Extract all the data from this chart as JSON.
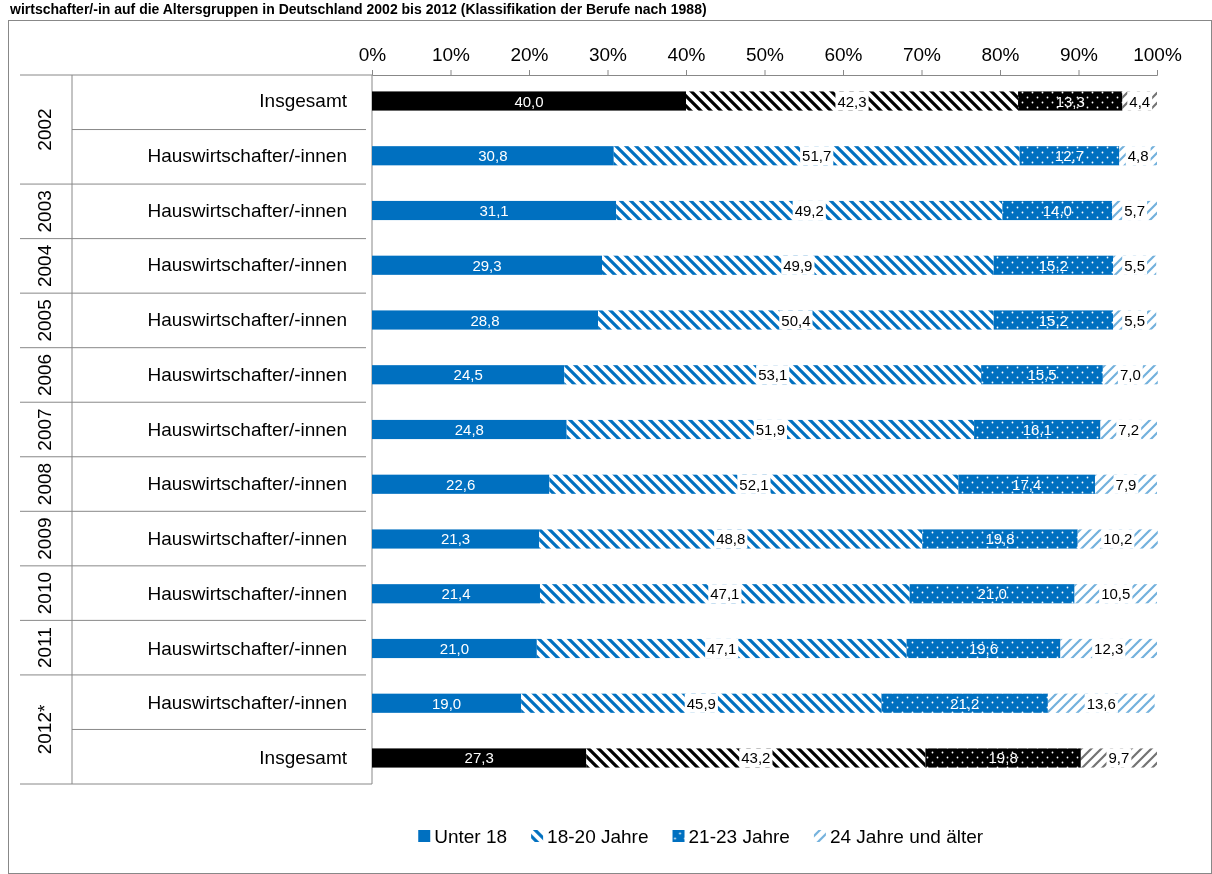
{
  "chart_data": {
    "type": "bar",
    "orientation": "horizontal",
    "stacked": true,
    "title": "wirtschafter/-in auf die Altersgruppen in Deutschland 2002 bis 2012 (Klassifikation der Berufe nach 1988)",
    "categories": [
      "Insgesamt",
      "Hauswirtschafter/-innen",
      "Hauswirtschafter/-innen",
      "Hauswirtschafter/-innen",
      "Hauswirtschafter/-innen",
      "Hauswirtschafter/-innen",
      "Hauswirtschafter/-innen",
      "Hauswirtschafter/-innen",
      "Hauswirtschafter/-innen",
      "Hauswirtschafter/-innen",
      "Hauswirtschafter/-innen",
      "Hauswirtschafter/-innen",
      "Insgesamt"
    ],
    "annotations": [
      "2002",
      "2003",
      "2004",
      "2005",
      "2006",
      "2007",
      "2008",
      "2009",
      "2010",
      "2011",
      "2012*"
    ],
    "xlim": [
      0,
      100
    ],
    "xticks": [
      {
        "value": 0,
        "label": "0%"
      },
      {
        "value": 10,
        "label": "10%"
      },
      {
        "value": 20,
        "label": "20%"
      },
      {
        "value": 30,
        "label": "30%"
      },
      {
        "value": 40,
        "label": "40%"
      },
      {
        "value": 50,
        "label": "50%"
      },
      {
        "value": 60,
        "label": "60%"
      },
      {
        "value": 70,
        "label": "70%"
      },
      {
        "value": 80,
        "label": "80%"
      },
      {
        "value": 90,
        "label": "90%"
      },
      {
        "value": 100,
        "label": "100%"
      }
    ],
    "legend": "bottom",
    "series": [
      {
        "name": "Unter 18",
        "color": "#0070c0",
        "colors": [
          "#000000",
          "#0070c0",
          "#0070c0",
          "#0070c0",
          "#0070c0",
          "#0070c0",
          "#0070c0",
          "#0070c0",
          "#0070c0",
          "#0070c0",
          "#0070c0",
          "#0070c0",
          "#000000"
        ],
        "values": [
          40.0,
          30.8,
          31.1,
          29.3,
          28.8,
          24.5,
          24.8,
          22.6,
          21.3,
          21.4,
          21.0,
          19.0,
          27.3
        ],
        "value_labels": [
          "40,0",
          "30,8",
          "31,1",
          "29,3",
          "28,8",
          "24,5",
          "24,8",
          "22,6",
          "21,3",
          "21,4",
          "21,0",
          "19,0",
          "27,3"
        ]
      },
      {
        "name": "18-20 Jahre",
        "color": "#0070c0",
        "colors": [
          "#000000",
          "#0070c0",
          "#0070c0",
          "#0070c0",
          "#0070c0",
          "#0070c0",
          "#0070c0",
          "#0070c0",
          "#0070c0",
          "#0070c0",
          "#0070c0",
          "#0070c0",
          "#000000"
        ],
        "values": [
          42.3,
          51.7,
          49.2,
          49.9,
          50.4,
          53.1,
          51.9,
          52.1,
          48.8,
          47.1,
          47.1,
          45.9,
          43.2
        ],
        "value_labels": [
          "42,3",
          "51,7",
          "49,2",
          "49,9",
          "50,4",
          "53,1",
          "51,9",
          "52,1",
          "48,8",
          "47,1",
          "47,1",
          "45,9",
          "43,2"
        ]
      },
      {
        "name": "21-23 Jahre",
        "color": "#0070c0",
        "colors": [
          "#000000",
          "#0070c0",
          "#0070c0",
          "#0070c0",
          "#0070c0",
          "#0070c0",
          "#0070c0",
          "#0070c0",
          "#0070c0",
          "#0070c0",
          "#0070c0",
          "#0070c0",
          "#000000"
        ],
        "values": [
          13.3,
          12.7,
          14.0,
          15.2,
          15.2,
          15.5,
          16.1,
          17.4,
          19.8,
          21.0,
          19.6,
          21.2,
          19.8
        ],
        "value_labels": [
          "13,3",
          "12,7",
          "14,0",
          "15,2",
          "15,2",
          "15,5",
          "16,1",
          "17,4",
          "19,8",
          "21,0",
          "19,6",
          "21,2",
          "19,8"
        ]
      },
      {
        "name": "24 Jahre und älter",
        "color": "#0070c0",
        "colors": [
          "#000000",
          "#0070c0",
          "#0070c0",
          "#0070c0",
          "#0070c0",
          "#0070c0",
          "#0070c0",
          "#0070c0",
          "#0070c0",
          "#0070c0",
          "#0070c0",
          "#0070c0",
          "#000000"
        ],
        "values": [
          4.4,
          4.8,
          5.7,
          5.5,
          5.5,
          7.0,
          7.2,
          7.9,
          10.2,
          10.5,
          12.3,
          13.6,
          9.7
        ],
        "value_labels": [
          "4,4",
          "4,8",
          "5,7",
          "5,5",
          "5,5",
          "7,0",
          "7,2",
          "7,9",
          "10,2",
          "10,5",
          "12,3",
          "13,6",
          "9,7"
        ]
      }
    ]
  }
}
